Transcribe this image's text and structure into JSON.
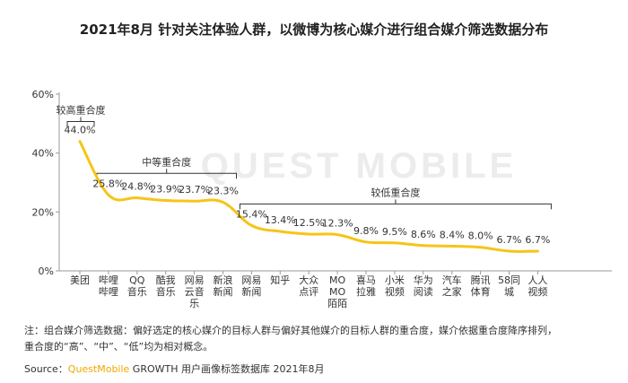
{
  "title": "2021年8月 针对关注体验人群，以微博为核心媒介进行组合媒介筛选数据分布",
  "watermark": "QUEST MOBILE",
  "note": {
    "line1": "注：组合媒介筛选数据：偏好选定的核心媒介的目标人群与偏好其他媒介的目标人群的重合度，媒介依据重合度降序排列，",
    "line2": "重合度的“高”、“中”、“低”均为相对概念。"
  },
  "source": {
    "prefix": "Source：",
    "brand": "QuestMobile",
    "rest": " GROWTH 用户画像标签数据库 2021年8月"
  },
  "colors": {
    "line": "#f5c518",
    "axis": "#999999",
    "bracket": "#333333",
    "watermark": "#ececec",
    "brand": "#f0a800"
  },
  "chart_data": {
    "type": "line",
    "ylim": [
      0,
      60
    ],
    "yticks": [
      0,
      20,
      40,
      60
    ],
    "ytick_labels": [
      "0%",
      "20%",
      "40%",
      "60%"
    ],
    "categories": [
      [
        "美团"
      ],
      [
        "哔哩",
        "哔哩"
      ],
      [
        "QQ",
        "音乐"
      ],
      [
        "酷我",
        "音乐"
      ],
      [
        "网易",
        "云音",
        "乐"
      ],
      [
        "新浪",
        "新闻"
      ],
      [
        "网易",
        "新闻"
      ],
      [
        "知乎"
      ],
      [
        "大众",
        "点评"
      ],
      [
        "MO",
        "MO",
        "陌陌"
      ],
      [
        "喜马",
        "拉雅"
      ],
      [
        "小米",
        "视频"
      ],
      [
        "华为",
        "阅读"
      ],
      [
        "汽车",
        "之家"
      ],
      [
        "腾讯",
        "体育"
      ],
      [
        "58同",
        "城"
      ],
      [
        "人人",
        "视频"
      ]
    ],
    "values": [
      44.0,
      25.8,
      24.8,
      23.9,
      23.7,
      23.3,
      15.4,
      13.4,
      12.5,
      12.3,
      9.8,
      9.5,
      8.6,
      8.4,
      8.0,
      6.7,
      6.7
    ],
    "labels": [
      "44.0%",
      "25.8%",
      "24.8%",
      "23.9%",
      "23.7%",
      "23.3%",
      "15.4%",
      "13.4%",
      "12.5%",
      "12.3%",
      "9.8%",
      "9.5%",
      "8.6%",
      "8.4%",
      "8.0%",
      "6.7%",
      "6.7%"
    ],
    "annotations": [
      {
        "text": "较高重合度",
        "from": 0,
        "to": 0
      },
      {
        "text": "中等重合度",
        "from": 1,
        "to": 5
      },
      {
        "text": "较低重合度",
        "from": 6,
        "to": 16
      }
    ]
  }
}
